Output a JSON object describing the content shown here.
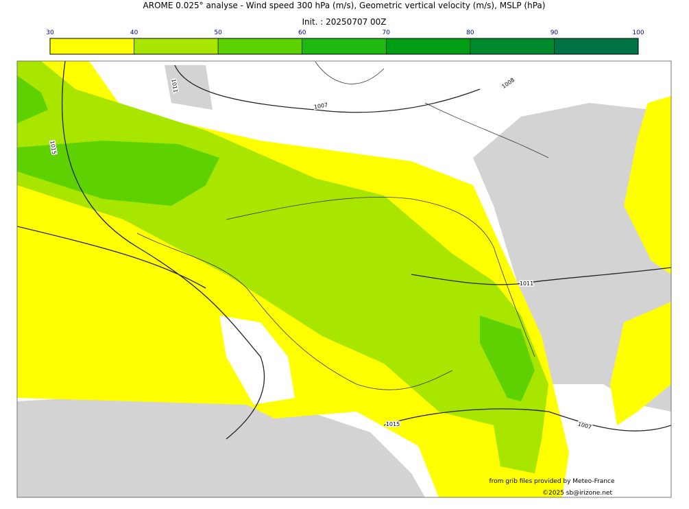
{
  "header": {
    "title": "AROME 0.025° analyse - Wind speed 300 hPa (m/s), Geometric vertical velocity (m/s), MSLP (hPa)",
    "subtitle": "Init. : 20250707 00Z"
  },
  "colorbar": {
    "ticks": [
      30,
      40,
      50,
      60,
      70,
      80,
      90,
      100
    ],
    "colors": [
      "#ffff00",
      "#a8e600",
      "#5ed200",
      "#1fb90f",
      "#009e14",
      "#008a2e",
      "#007344"
    ]
  },
  "contour_labels": [
    "1011",
    "1007",
    "1015",
    "1008",
    "1011",
    "1015",
    "1007"
  ],
  "credits": [
    "from grib files provided by Meteo-France",
    "©2025 sb@irizone.net"
  ]
}
